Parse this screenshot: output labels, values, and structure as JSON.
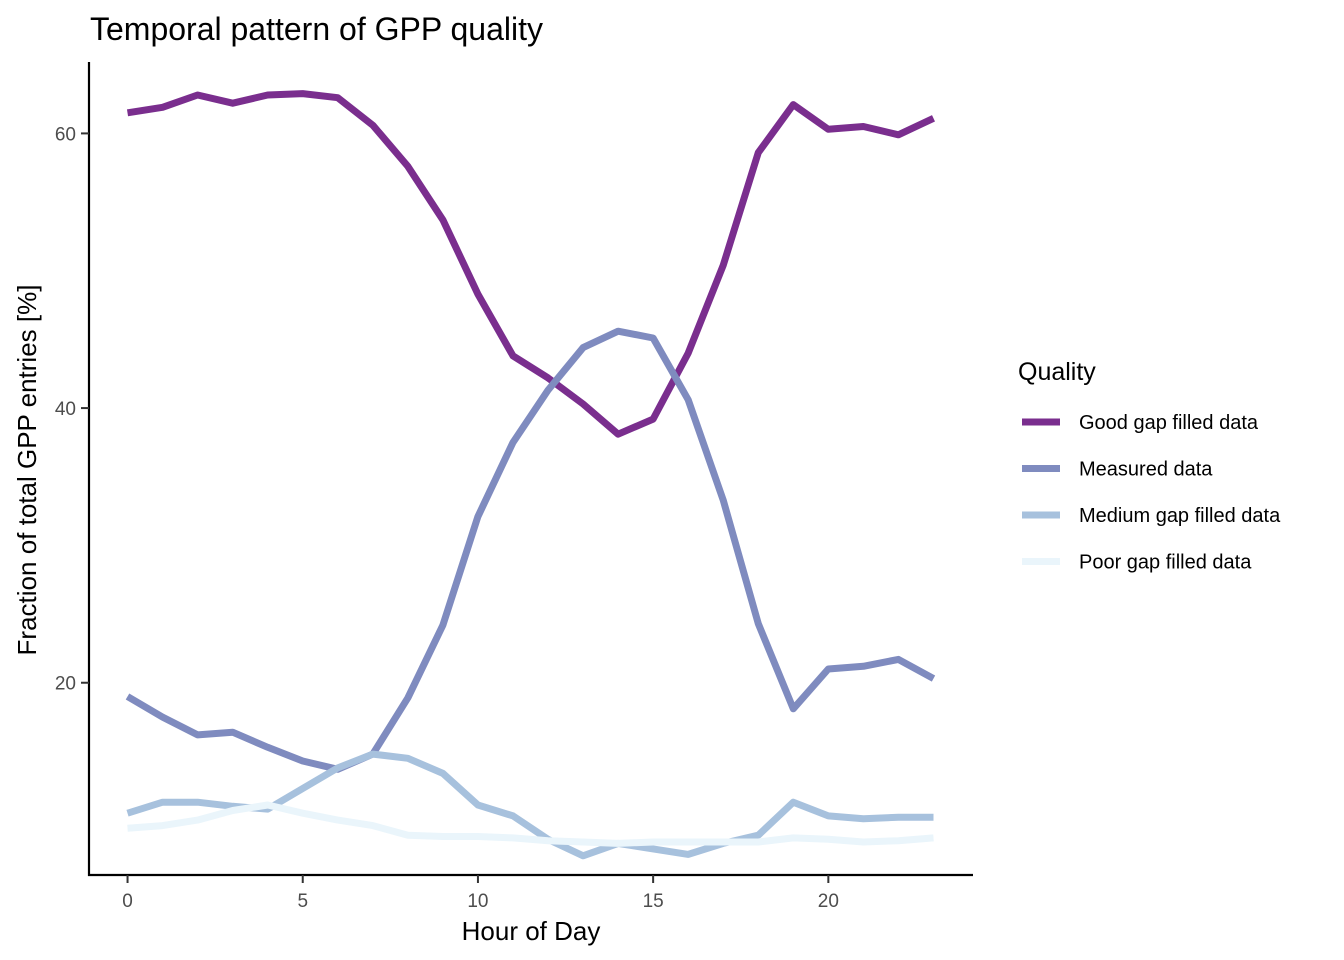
{
  "chart_data": {
    "type": "line",
    "title": "Temporal pattern of GPP quality",
    "xlabel": "Hour of Day",
    "ylabel": "Fraction of total GPP entries [%]",
    "xlim": [
      -1.1,
      24.1
    ],
    "ylim": [
      6.0,
      65.2
    ],
    "x_ticks": [
      0,
      5,
      10,
      15,
      20
    ],
    "y_ticks": [
      20,
      40,
      60
    ],
    "grid": false,
    "legend": {
      "title": "Quality",
      "placement": "right"
    },
    "x": [
      0,
      1,
      2,
      3,
      4,
      5,
      6,
      7,
      8,
      9,
      10,
      11,
      12,
      13,
      14,
      15,
      16,
      17,
      18,
      19,
      20,
      21,
      22,
      23
    ],
    "series": [
      {
        "name": "Good gap filled data",
        "color": "#7a2e8e",
        "values": [
          61.5,
          61.9,
          62.8,
          62.2,
          62.8,
          62.9,
          62.6,
          60.6,
          57.6,
          53.7,
          48.3,
          43.8,
          42.2,
          40.3,
          38.1,
          39.2,
          44.0,
          50.4,
          58.6,
          62.1,
          60.3,
          60.5,
          59.9,
          61.1
        ]
      },
      {
        "name": "Measured data",
        "color": "#7f8bbf",
        "values": [
          19.0,
          17.5,
          16.2,
          16.4,
          15.3,
          14.3,
          13.7,
          14.8,
          18.9,
          24.2,
          32.1,
          37.5,
          41.3,
          44.4,
          45.6,
          45.1,
          40.6,
          33.3,
          24.3,
          18.1,
          21.0,
          21.2,
          21.7,
          20.3
        ]
      },
      {
        "name": "Medium gap filled data",
        "color": "#a7c1dd",
        "values": [
          10.5,
          11.3,
          11.3,
          11.0,
          10.8,
          12.3,
          13.8,
          14.8,
          14.5,
          13.4,
          11.1,
          10.3,
          8.6,
          7.4,
          8.3,
          7.9,
          7.5,
          8.3,
          8.9,
          11.3,
          10.3,
          10.1,
          10.2,
          10.2
        ]
      },
      {
        "name": "Poor gap filled data",
        "color": "#eaf5fb",
        "values": [
          9.4,
          9.6,
          10.0,
          10.7,
          11.1,
          10.5,
          10.0,
          9.6,
          8.9,
          8.8,
          8.8,
          8.7,
          8.5,
          8.4,
          8.3,
          8.4,
          8.4,
          8.4,
          8.4,
          8.7,
          8.6,
          8.4,
          8.5,
          8.7
        ]
      }
    ]
  }
}
